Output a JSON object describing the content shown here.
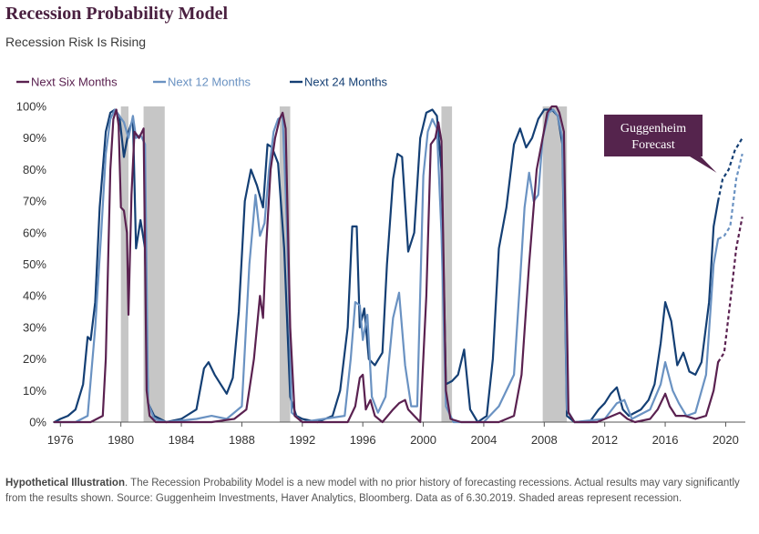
{
  "header": {
    "title": "Recession Probability Model",
    "subtitle": "Recession Risk Is Rising"
  },
  "footnote": {
    "lead": "Hypothetical Illustration",
    "text": ". The Recession Probability Model is a new model with no prior history of forecasting recessions. Actual results may vary significantly from the results shown. Source: Guggenheim Investments, Haver Analytics, Bloomberg. Data as of 6.30.2019. Shaded areas represent recession."
  },
  "colors": {
    "six": "#5a2150",
    "twelve": "#6a92c2",
    "twentyfour": "#143f74",
    "recession": "#c6c6c6",
    "callout": "#55244d"
  },
  "chart_data": {
    "type": "line",
    "xlim": [
      1975.5,
      2021.3
    ],
    "ylim": [
      0,
      100
    ],
    "x_ticks": [
      1976,
      1980,
      1984,
      1988,
      1992,
      1996,
      2000,
      2004,
      2008,
      2012,
      2016,
      2020
    ],
    "y_ticks": [
      0,
      10,
      20,
      30,
      40,
      50,
      60,
      70,
      80,
      90,
      100
    ],
    "y_tick_labels": [
      "0%",
      "10%",
      "20%",
      "30%",
      "40%",
      "50%",
      "60%",
      "70%",
      "80%",
      "90%",
      "100%"
    ],
    "legend_position": "top-left",
    "grid": false,
    "recessions": [
      [
        1980.0,
        1980.5
      ],
      [
        1981.5,
        1982.9
      ],
      [
        1990.5,
        1991.2
      ],
      [
        2001.2,
        2001.9
      ],
      [
        2007.9,
        2009.5
      ]
    ],
    "annotation": {
      "text_line1": "Guggenheim",
      "text_line2": "Forecast",
      "x": 2019.4,
      "y": 79
    },
    "forecast_start": 2019.5,
    "series": [
      {
        "name": "Next Six Months",
        "color": "#5a2150",
        "points": [
          [
            1975.6,
            0
          ],
          [
            1977,
            0
          ],
          [
            1978,
            0
          ],
          [
            1978.8,
            2
          ],
          [
            1979.0,
            20
          ],
          [
            1979.3,
            80
          ],
          [
            1979.5,
            96
          ],
          [
            1979.7,
            99
          ],
          [
            1979.85,
            94
          ],
          [
            1980.0,
            68
          ],
          [
            1980.2,
            67
          ],
          [
            1980.4,
            60
          ],
          [
            1980.5,
            34
          ],
          [
            1980.7,
            72
          ],
          [
            1980.9,
            92
          ],
          [
            1981.2,
            90
          ],
          [
            1981.5,
            93
          ],
          [
            1981.7,
            10
          ],
          [
            1981.9,
            2
          ],
          [
            1982.3,
            0
          ],
          [
            1984,
            0
          ],
          [
            1986,
            0
          ],
          [
            1987.5,
            1
          ],
          [
            1988.3,
            4
          ],
          [
            1988.8,
            20
          ],
          [
            1989.2,
            40
          ],
          [
            1989.4,
            33
          ],
          [
            1989.6,
            55
          ],
          [
            1989.9,
            80
          ],
          [
            1990.2,
            90
          ],
          [
            1990.5,
            96
          ],
          [
            1990.7,
            98
          ],
          [
            1990.9,
            93
          ],
          [
            1991.2,
            30
          ],
          [
            1991.5,
            2
          ],
          [
            1992,
            0
          ],
          [
            1995,
            0
          ],
          [
            1995.5,
            5
          ],
          [
            1995.8,
            14
          ],
          [
            1996.0,
            15
          ],
          [
            1996.2,
            4
          ],
          [
            1996.5,
            7
          ],
          [
            1996.8,
            2
          ],
          [
            1997.3,
            0
          ],
          [
            1998,
            4
          ],
          [
            1998.4,
            6
          ],
          [
            1998.8,
            7
          ],
          [
            1999,
            4
          ],
          [
            1999.4,
            2
          ],
          [
            1999.8,
            0
          ],
          [
            2000.2,
            40
          ],
          [
            2000.5,
            88
          ],
          [
            2000.8,
            90
          ],
          [
            2001.0,
            95
          ],
          [
            2001.2,
            89
          ],
          [
            2001.5,
            10
          ],
          [
            2001.8,
            1
          ],
          [
            2002.5,
            0
          ],
          [
            2005,
            0
          ],
          [
            2006,
            2
          ],
          [
            2006.5,
            15
          ],
          [
            2007,
            50
          ],
          [
            2007.5,
            80
          ],
          [
            2007.9,
            90
          ],
          [
            2008.2,
            98
          ],
          [
            2008.5,
            100
          ],
          [
            2008.8,
            100
          ],
          [
            2009.0,
            98
          ],
          [
            2009.3,
            92
          ],
          [
            2009.6,
            3
          ],
          [
            2010,
            0
          ],
          [
            2011.5,
            0
          ],
          [
            2012.5,
            2
          ],
          [
            2013,
            3
          ],
          [
            2013.5,
            1
          ],
          [
            2014,
            0
          ],
          [
            2015,
            1
          ],
          [
            2015.5,
            4
          ],
          [
            2016,
            9
          ],
          [
            2016.3,
            5
          ],
          [
            2016.7,
            2
          ],
          [
            2017.3,
            2
          ],
          [
            2018,
            1
          ],
          [
            2018.7,
            2
          ],
          [
            2019.2,
            10
          ],
          [
            2019.5,
            19
          ]
        ]
      },
      {
        "name": "Next 12 Months",
        "color": "#6a92c2",
        "points": [
          [
            1975.6,
            0
          ],
          [
            1977,
            0
          ],
          [
            1977.8,
            2
          ],
          [
            1978.3,
            30
          ],
          [
            1978.7,
            60
          ],
          [
            1979.0,
            85
          ],
          [
            1979.3,
            96
          ],
          [
            1979.6,
            99
          ],
          [
            1979.9,
            97
          ],
          [
            1980.2,
            95
          ],
          [
            1980.5,
            90
          ],
          [
            1980.8,
            97
          ],
          [
            1981.0,
            90
          ],
          [
            1981.3,
            91
          ],
          [
            1981.6,
            88
          ],
          [
            1981.8,
            6
          ],
          [
            1982.2,
            1
          ],
          [
            1983,
            0
          ],
          [
            1985,
            1
          ],
          [
            1986,
            2
          ],
          [
            1987,
            1
          ],
          [
            1988,
            5
          ],
          [
            1988.5,
            50
          ],
          [
            1988.9,
            72
          ],
          [
            1989.2,
            59
          ],
          [
            1989.5,
            63
          ],
          [
            1989.8,
            80
          ],
          [
            1990.1,
            92
          ],
          [
            1990.4,
            96
          ],
          [
            1990.7,
            97
          ],
          [
            1991.0,
            60
          ],
          [
            1991.3,
            3
          ],
          [
            1992,
            0
          ],
          [
            1994.8,
            2
          ],
          [
            1995.2,
            20
          ],
          [
            1995.5,
            38
          ],
          [
            1995.8,
            37
          ],
          [
            1996.0,
            26
          ],
          [
            1996.3,
            34
          ],
          [
            1996.6,
            8
          ],
          [
            1997,
            3
          ],
          [
            1997.5,
            8
          ],
          [
            1998.0,
            33
          ],
          [
            1998.4,
            41
          ],
          [
            1998.8,
            18
          ],
          [
            1999.2,
            5
          ],
          [
            1999.6,
            5
          ],
          [
            2000.0,
            78
          ],
          [
            2000.3,
            92
          ],
          [
            2000.6,
            96
          ],
          [
            2000.9,
            93
          ],
          [
            2001.2,
            60
          ],
          [
            2001.5,
            5
          ],
          [
            2002,
            0
          ],
          [
            2004,
            0
          ],
          [
            2005,
            5
          ],
          [
            2006,
            15
          ],
          [
            2006.4,
            45
          ],
          [
            2006.7,
            68
          ],
          [
            2007.0,
            79
          ],
          [
            2007.3,
            70
          ],
          [
            2007.6,
            72
          ],
          [
            2007.9,
            90
          ],
          [
            2008.3,
            98
          ],
          [
            2008.6,
            99
          ],
          [
            2008.9,
            97
          ],
          [
            2009.2,
            90
          ],
          [
            2009.5,
            4
          ],
          [
            2010,
            0
          ],
          [
            2012,
            1
          ],
          [
            2012.8,
            6
          ],
          [
            2013.3,
            7
          ],
          [
            2013.8,
            1
          ],
          [
            2015,
            4
          ],
          [
            2015.7,
            12
          ],
          [
            2016,
            19
          ],
          [
            2016.5,
            10
          ],
          [
            2016.9,
            6
          ],
          [
            2017.4,
            2
          ],
          [
            2018,
            3
          ],
          [
            2018.7,
            15
          ],
          [
            2019.2,
            50
          ],
          [
            2019.5,
            58
          ]
        ]
      },
      {
        "name": "Next 24 Months",
        "color": "#143f74",
        "points": [
          [
            1975.6,
            0
          ],
          [
            1976,
            1
          ],
          [
            1976.5,
            2
          ],
          [
            1977,
            4
          ],
          [
            1977.5,
            12
          ],
          [
            1977.8,
            27
          ],
          [
            1978.0,
            26
          ],
          [
            1978.3,
            38
          ],
          [
            1978.6,
            68
          ],
          [
            1979.0,
            92
          ],
          [
            1979.3,
            98
          ],
          [
            1979.6,
            99
          ],
          [
            1979.9,
            97
          ],
          [
            1980.2,
            84
          ],
          [
            1980.5,
            92
          ],
          [
            1980.8,
            96
          ],
          [
            1981.0,
            55
          ],
          [
            1981.3,
            64
          ],
          [
            1981.6,
            55
          ],
          [
            1981.8,
            6
          ],
          [
            1982.2,
            2
          ],
          [
            1983,
            0
          ],
          [
            1984,
            1
          ],
          [
            1985,
            4
          ],
          [
            1985.5,
            17
          ],
          [
            1985.8,
            19
          ],
          [
            1986.2,
            15
          ],
          [
            1986.6,
            12
          ],
          [
            1987.0,
            9
          ],
          [
            1987.4,
            14
          ],
          [
            1987.8,
            35
          ],
          [
            1988.2,
            70
          ],
          [
            1988.6,
            80
          ],
          [
            1989.0,
            75
          ],
          [
            1989.4,
            68
          ],
          [
            1989.7,
            88
          ],
          [
            1990.0,
            87
          ],
          [
            1990.4,
            82
          ],
          [
            1990.8,
            55
          ],
          [
            1991.2,
            8
          ],
          [
            1991.6,
            2
          ],
          [
            1992,
            1
          ],
          [
            1993,
            0
          ],
          [
            1994,
            2
          ],
          [
            1994.5,
            10
          ],
          [
            1995.0,
            30
          ],
          [
            1995.3,
            62
          ],
          [
            1995.6,
            62
          ],
          [
            1995.8,
            30
          ],
          [
            1996.1,
            36
          ],
          [
            1996.4,
            20
          ],
          [
            1996.8,
            18
          ],
          [
            1997.3,
            22
          ],
          [
            1997.6,
            50
          ],
          [
            1998.0,
            77
          ],
          [
            1998.3,
            85
          ],
          [
            1998.6,
            84
          ],
          [
            1999.0,
            54
          ],
          [
            1999.4,
            60
          ],
          [
            1999.8,
            90
          ],
          [
            2000.2,
            98
          ],
          [
            2000.6,
            99
          ],
          [
            2000.9,
            97
          ],
          [
            2001.2,
            80
          ],
          [
            2001.5,
            12
          ],
          [
            2001.9,
            13
          ],
          [
            2002.3,
            15
          ],
          [
            2002.7,
            23
          ],
          [
            2003.1,
            4
          ],
          [
            2003.6,
            0
          ],
          [
            2004.2,
            2
          ],
          [
            2004.6,
            20
          ],
          [
            2005.0,
            55
          ],
          [
            2005.5,
            68
          ],
          [
            2006.0,
            88
          ],
          [
            2006.4,
            93
          ],
          [
            2006.8,
            87
          ],
          [
            2007.2,
            90
          ],
          [
            2007.6,
            96
          ],
          [
            2008.0,
            99
          ],
          [
            2008.5,
            99
          ],
          [
            2008.9,
            97
          ],
          [
            2009.2,
            88
          ],
          [
            2009.5,
            2
          ],
          [
            2010,
            0
          ],
          [
            2011,
            0
          ],
          [
            2011.6,
            4
          ],
          [
            2012.0,
            6
          ],
          [
            2012.4,
            9
          ],
          [
            2012.8,
            11
          ],
          [
            2013.2,
            4
          ],
          [
            2013.6,
            2
          ],
          [
            2014.4,
            4
          ],
          [
            2014.9,
            7
          ],
          [
            2015.3,
            12
          ],
          [
            2015.7,
            25
          ],
          [
            2016.0,
            38
          ],
          [
            2016.4,
            32
          ],
          [
            2016.8,
            18
          ],
          [
            2017.2,
            22
          ],
          [
            2017.6,
            16
          ],
          [
            2018.0,
            15
          ],
          [
            2018.4,
            19
          ],
          [
            2018.9,
            38
          ],
          [
            2019.2,
            62
          ],
          [
            2019.5,
            70
          ]
        ]
      }
    ],
    "forecast": [
      {
        "name": "Next Six Months",
        "points": [
          [
            2019.5,
            19
          ],
          [
            2019.9,
            22
          ],
          [
            2020.3,
            38
          ],
          [
            2020.7,
            55
          ],
          [
            2021.1,
            65
          ]
        ]
      },
      {
        "name": "Next 12 Months",
        "points": [
          [
            2019.5,
            58
          ],
          [
            2019.9,
            59
          ],
          [
            2020.3,
            62
          ],
          [
            2020.7,
            77
          ],
          [
            2021.1,
            85
          ]
        ]
      },
      {
        "name": "Next 24 Months",
        "points": [
          [
            2019.5,
            70
          ],
          [
            2019.8,
            77
          ],
          [
            2020.2,
            80
          ],
          [
            2020.6,
            86
          ],
          [
            2021.1,
            90
          ]
        ]
      }
    ]
  }
}
